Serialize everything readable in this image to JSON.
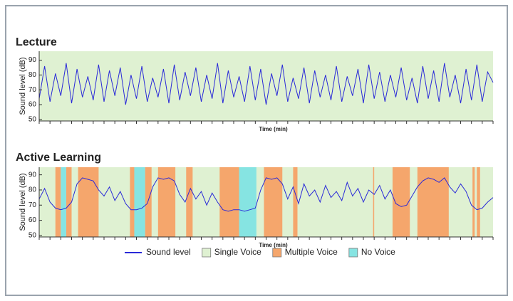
{
  "chart_data": [
    {
      "type": "line",
      "title": "Lecture",
      "ylabel": "Sound level (dB)",
      "xlabel": "Time (min)",
      "color": "#2a2ad8",
      "background": "#dff1d2",
      "xlim": [
        0,
        42
      ],
      "ylim": [
        49,
        96
      ],
      "xticks": [
        0,
        1,
        2,
        3,
        4,
        5,
        6,
        7,
        8,
        9,
        10,
        11,
        12,
        13,
        14,
        15,
        16,
        17,
        18,
        19,
        20,
        21,
        22,
        23,
        24,
        25,
        26,
        27,
        28,
        29,
        30,
        31,
        32,
        33,
        34,
        35,
        36,
        37,
        38,
        39,
        40,
        41,
        42
      ],
      "yticks": [
        50,
        60,
        70,
        80,
        90
      ],
      "x": [
        0,
        0.5,
        1,
        1.5,
        2,
        2.5,
        3,
        3.5,
        4,
        4.5,
        5,
        5.5,
        6,
        6.5,
        7,
        7.5,
        8,
        8.5,
        9,
        9.5,
        10,
        10.5,
        11,
        11.5,
        12,
        12.5,
        13,
        13.5,
        14,
        14.5,
        15,
        15.5,
        16,
        16.5,
        17,
        17.5,
        18,
        18.5,
        19,
        19.5,
        20,
        20.5,
        21,
        21.5,
        22,
        22.5,
        23,
        23.5,
        24,
        24.5,
        25,
        25.5,
        26,
        26.5,
        27,
        27.5,
        28,
        28.5,
        29,
        29.5,
        30,
        30.5,
        31,
        31.5,
        32,
        32.5,
        33,
        33.5,
        34,
        34.5,
        35,
        35.5,
        36,
        36.5,
        37,
        37.5,
        38,
        38.5,
        39,
        39.5,
        40,
        40.5,
        41,
        41.5,
        42
      ],
      "values": [
        64,
        86,
        62,
        81,
        66,
        88,
        61,
        84,
        65,
        79,
        63,
        87,
        62,
        83,
        66,
        85,
        60,
        80,
        64,
        86,
        62,
        78,
        65,
        84,
        61,
        87,
        63,
        82,
        66,
        85,
        62,
        80,
        64,
        88,
        61,
        83,
        65,
        79,
        62,
        86,
        63,
        84,
        60,
        81,
        66,
        87,
        62,
        78,
        64,
        85,
        61,
        83,
        65,
        80,
        63,
        86,
        62,
        79,
        66,
        84,
        61,
        87,
        64,
        82,
        62,
        80,
        65,
        85,
        63,
        78,
        61,
        86,
        64,
        83,
        62,
        88,
        65,
        80,
        61,
        84,
        63,
        87,
        62,
        82,
        75
      ]
    },
    {
      "type": "line",
      "title": "Active Learning",
      "ylabel": "Sound level (dB)",
      "xlabel": "Time (min)",
      "xlim": [
        0,
        42
      ],
      "ylim": [
        49,
        95
      ],
      "xticks": [
        0,
        1,
        2,
        3,
        4,
        5,
        6,
        7,
        8,
        9,
        10,
        11,
        12,
        13,
        14,
        15,
        16,
        17,
        18,
        19,
        20,
        21,
        22,
        23,
        24,
        25,
        26,
        27,
        28,
        29,
        30,
        31,
        32,
        33,
        34,
        35,
        36,
        37,
        38,
        39,
        40,
        41,
        42
      ],
      "yticks": [
        50,
        60,
        70,
        80,
        90
      ],
      "regions": [
        {
          "name": "Single Voice",
          "color": "#dff1d2",
          "spans": [
            [
              0,
              42
            ]
          ]
        },
        {
          "name": "Multiple Voice",
          "color": "#f5a66c",
          "spans": [
            [
              1.5,
              2.0
            ],
            [
              2.5,
              3.0
            ],
            [
              3.6,
              5.5
            ],
            [
              8.4,
              8.8
            ],
            [
              9.8,
              10.4
            ],
            [
              11.0,
              12.6
            ],
            [
              13.6,
              14.2
            ],
            [
              16.7,
              18.5
            ],
            [
              20.8,
              22.5
            ],
            [
              23.5,
              23.9
            ],
            [
              30.9,
              31.0
            ],
            [
              32.7,
              34.3
            ],
            [
              35.0,
              37.9
            ],
            [
              40.1,
              40.3
            ],
            [
              40.5,
              40.8
            ]
          ]
        },
        {
          "name": "No Voice",
          "color": "#86e4e2",
          "spans": [
            [
              2.0,
              2.5
            ],
            [
              8.8,
              9.8
            ],
            [
              18.5,
              20.1
            ]
          ]
        }
      ],
      "x": [
        0,
        0.5,
        1,
        1.5,
        2,
        2.5,
        3,
        3.5,
        4,
        4.5,
        5,
        5.5,
        6,
        6.5,
        7,
        7.5,
        8,
        8.5,
        9,
        9.5,
        10,
        10.5,
        11,
        11.5,
        12,
        12.5,
        13,
        13.5,
        14,
        14.5,
        15,
        15.5,
        16,
        16.5,
        17,
        17.5,
        18,
        18.5,
        19,
        19.5,
        20,
        20.5,
        21,
        21.5,
        22,
        22.5,
        23,
        23.5,
        24,
        24.5,
        25,
        25.5,
        26,
        26.5,
        27,
        27.5,
        28,
        28.5,
        29,
        29.5,
        30,
        30.5,
        31,
        31.5,
        32,
        32.5,
        33,
        33.5,
        34,
        34.5,
        35,
        35.5,
        36,
        36.5,
        37,
        37.5,
        38,
        38.5,
        39,
        39.5,
        40,
        40.5,
        41,
        41.5,
        42
      ],
      "series": [
        {
          "name": "Sound level",
          "color": "#2a2ad8",
          "values": [
            74,
            81,
            72,
            68,
            67,
            68,
            72,
            84,
            88,
            87,
            86,
            80,
            76,
            82,
            73,
            79,
            71,
            67,
            67,
            68,
            71,
            82,
            88,
            87,
            88,
            86,
            77,
            72,
            81,
            74,
            79,
            70,
            78,
            72,
            67,
            66,
            67,
            67,
            66,
            67,
            68,
            80,
            88,
            87,
            88,
            84,
            74,
            82,
            71,
            84,
            76,
            80,
            72,
            83,
            75,
            79,
            73,
            85,
            76,
            81,
            72,
            80,
            77,
            83,
            74,
            80,
            71,
            69,
            70,
            76,
            82,
            86,
            88,
            87,
            85,
            88,
            82,
            78,
            84,
            79,
            70,
            67,
            68,
            72,
            75
          ]
        }
      ]
    }
  ]
}
